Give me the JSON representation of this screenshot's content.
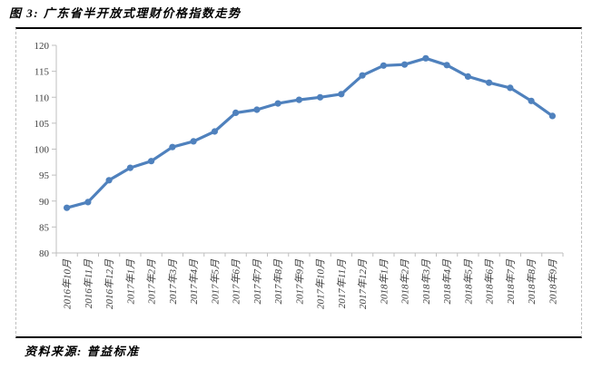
{
  "page": {
    "title": "图 3: 广东省半开放式理财价格指数走势",
    "source": "资料来源: 普益标准"
  },
  "colors": {
    "line": "#4F81BD",
    "axis": "#BFBFBF",
    "tick_label": "#404040",
    "frame_solid": "#000000",
    "frame_dashed": "#BFBFBF",
    "background": "#FFFFFF"
  },
  "chart_data": {
    "type": "line",
    "title": "图 3: 广东省半开放式理财价格指数走势",
    "xlabel": "",
    "ylabel": "",
    "ylim": [
      80,
      120
    ],
    "yticks": [
      80,
      85,
      90,
      95,
      100,
      105,
      110,
      115,
      120
    ],
    "grid": false,
    "legend": "none",
    "marker": "circle",
    "x_label_rotation": -90,
    "categories": [
      "2016年10月",
      "2016年11月",
      "2016年12月",
      "2017年1月",
      "2017年2月",
      "2017年3月",
      "2017年4月",
      "2017年5月",
      "2017年6月",
      "2017年7月",
      "2017年8月",
      "2017年9月",
      "2017年10月",
      "2017年11月",
      "2017年12月",
      "2018年1月",
      "2018年2月",
      "2018年3月",
      "2018年4月",
      "2018年5月",
      "2018年6月",
      "2018年7月",
      "2018年8月",
      "2018年9月"
    ],
    "values": [
      88.7,
      89.8,
      94.0,
      96.4,
      97.7,
      100.4,
      101.5,
      103.4,
      107.0,
      107.6,
      108.8,
      109.5,
      110.0,
      110.6,
      114.2,
      116.1,
      116.3,
      117.5,
      116.2,
      114.0,
      112.8,
      111.8,
      109.3,
      106.4
    ]
  }
}
